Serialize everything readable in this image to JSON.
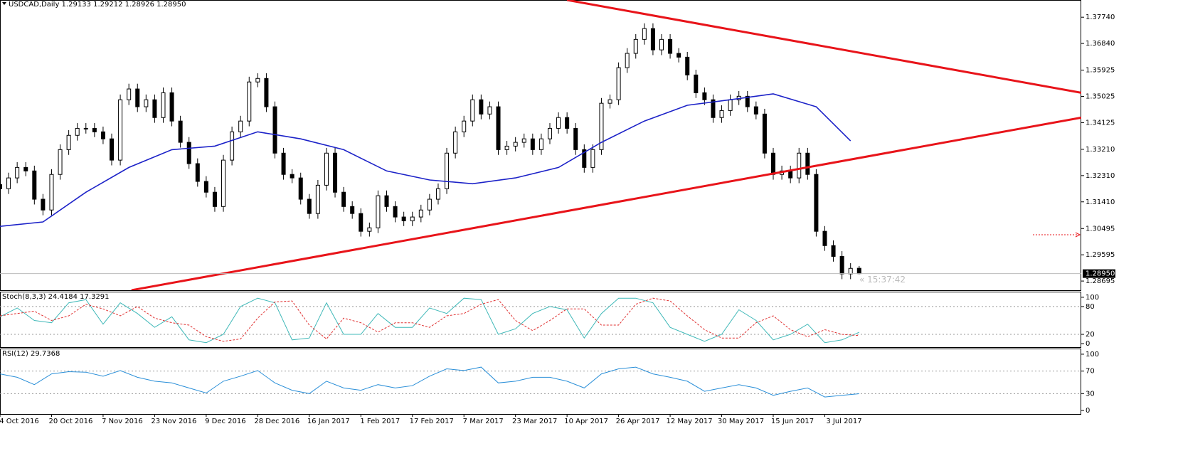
{
  "chart_data": [
    {
      "type": "candlestick",
      "title": "USDCAD,Daily  1.29133 1.29212 1.28926 1.28950",
      "x": [
        0,
        2,
        4,
        6,
        8,
        10,
        12,
        14,
        16,
        18,
        20,
        22,
        24,
        26,
        28,
        30,
        32,
        34,
        36,
        38,
        40,
        42,
        44,
        46,
        48,
        50,
        52,
        54,
        56,
        58,
        60,
        62,
        64,
        66,
        68,
        70,
        72,
        74,
        76,
        78,
        80,
        82,
        84,
        86,
        88,
        90,
        92,
        94,
        96,
        98,
        100,
        102,
        104,
        106,
        108,
        110,
        112,
        114,
        116,
        118,
        120,
        122,
        124,
        126,
        128,
        130,
        132,
        134,
        136,
        138,
        140,
        142,
        144,
        146,
        148,
        150,
        152,
        154,
        156,
        158,
        160,
        162,
        164,
        166,
        168,
        170,
        172,
        174,
        176,
        178,
        180,
        182,
        184,
        186,
        188,
        190,
        192,
        194,
        196,
        198,
        200
      ],
      "open": [
        1.32,
        1.3186,
        1.3223,
        1.3259,
        1.3247,
        1.315,
        1.3113,
        1.3235,
        1.332,
        1.3369,
        1.3393,
        1.3393,
        1.3381,
        1.3357,
        1.3284,
        1.3491,
        1.3528,
        1.3467,
        1.3491,
        1.343,
        1.3515,
        1.3418,
        1.3345,
        1.3272,
        1.3211,
        1.3174,
        1.3125,
        1.3284,
        1.3381,
        1.3418,
        1.3552,
        1.3564,
        1.3467,
        1.3308,
        1.3235,
        1.3223,
        1.315,
        1.3101,
        1.3198,
        1.3308,
        1.3174,
        1.3125,
        1.3101,
        1.304,
        1.3052,
        1.3162,
        1.3125,
        1.3089,
        1.3076,
        1.3089,
        1.3113,
        1.315,
        1.3186,
        1.3308,
        1.3381,
        1.3418,
        1.3491,
        1.3442,
        1.3467,
        1.332,
        1.3332,
        1.3345,
        1.3357,
        1.332,
        1.3357,
        1.3393,
        1.343,
        1.3393,
        1.332,
        1.3259,
        1.332,
        1.3479,
        1.3491,
        1.3601,
        1.365,
        1.3698,
        1.3735,
        1.3662,
        1.3698,
        1.365,
        1.3637,
        1.3576,
        1.3515,
        1.3491,
        1.343,
        1.3454,
        1.3491,
        1.3503,
        1.3467,
        1.3442,
        1.3308,
        1.3235,
        1.3247,
        1.3223,
        1.3308,
        1.3235,
        1.304,
        1.2991,
        1.2954,
        1.2894,
        1.29133
      ],
      "high": [
        1.3218,
        1.3241,
        1.3277,
        1.3277,
        1.3265,
        1.3168,
        1.3253,
        1.3338,
        1.3387,
        1.3411,
        1.3411,
        1.3411,
        1.3399,
        1.3375,
        1.3509,
        1.3546,
        1.3546,
        1.3509,
        1.3509,
        1.3533,
        1.3533,
        1.3436,
        1.3363,
        1.329,
        1.3229,
        1.3192,
        1.3302,
        1.3399,
        1.3436,
        1.357,
        1.3582,
        1.3582,
        1.3485,
        1.3326,
        1.3253,
        1.3241,
        1.3168,
        1.3216,
        1.3326,
        1.3326,
        1.3192,
        1.3143,
        1.3119,
        1.307,
        1.318,
        1.318,
        1.3143,
        1.3107,
        1.3107,
        1.3131,
        1.3168,
        1.3204,
        1.3326,
        1.3399,
        1.3436,
        1.3509,
        1.3509,
        1.3485,
        1.3485,
        1.335,
        1.3363,
        1.3375,
        1.3375,
        1.3375,
        1.3411,
        1.3448,
        1.3448,
        1.3411,
        1.3338,
        1.3338,
        1.3497,
        1.3509,
        1.3619,
        1.3668,
        1.3716,
        1.3753,
        1.3753,
        1.3716,
        1.3716,
        1.3668,
        1.3655,
        1.3594,
        1.3533,
        1.3509,
        1.3472,
        1.3509,
        1.3521,
        1.3521,
        1.3485,
        1.346,
        1.3326,
        1.3265,
        1.3265,
        1.3326,
        1.3326,
        1.3253,
        1.3058,
        1.3009,
        1.2972,
        1.2931,
        1.29212
      ],
      "low": [
        1.3168,
        1.3168,
        1.3205,
        1.3229,
        1.3132,
        1.3095,
        1.3095,
        1.3217,
        1.3302,
        1.3351,
        1.3375,
        1.3363,
        1.3339,
        1.3266,
        1.3266,
        1.3473,
        1.3449,
        1.3449,
        1.3412,
        1.3412,
        1.34,
        1.3327,
        1.3254,
        1.3193,
        1.3156,
        1.3107,
        1.3107,
        1.3266,
        1.3363,
        1.34,
        1.3534,
        1.3449,
        1.329,
        1.3217,
        1.3205,
        1.3132,
        1.3083,
        1.3083,
        1.318,
        1.3156,
        1.3107,
        1.3083,
        1.3022,
        1.3022,
        1.3034,
        1.3107,
        1.3071,
        1.3058,
        1.3058,
        1.3071,
        1.3095,
        1.3132,
        1.3168,
        1.329,
        1.3363,
        1.34,
        1.3424,
        1.3424,
        1.3302,
        1.3302,
        1.3314,
        1.3327,
        1.3302,
        1.3302,
        1.3339,
        1.3375,
        1.3375,
        1.3302,
        1.3241,
        1.3241,
        1.3302,
        1.3461,
        1.3473,
        1.3583,
        1.3632,
        1.368,
        1.3644,
        1.3644,
        1.3632,
        1.3619,
        1.3558,
        1.3497,
        1.3473,
        1.3412,
        1.3412,
        1.3436,
        1.3473,
        1.3449,
        1.3424,
        1.329,
        1.3217,
        1.3217,
        1.3205,
        1.3205,
        1.3217,
        1.3022,
        1.2973,
        1.2936,
        1.2876,
        1.2876,
        1.28926
      ],
      "close": [
        1.3186,
        1.3223,
        1.3259,
        1.3247,
        1.315,
        1.3113,
        1.3235,
        1.332,
        1.3369,
        1.3393,
        1.3393,
        1.3381,
        1.3357,
        1.3284,
        1.3491,
        1.3528,
        1.3467,
        1.3491,
        1.343,
        1.3515,
        1.3418,
        1.3345,
        1.3272,
        1.3211,
        1.3174,
        1.3125,
        1.3284,
        1.3381,
        1.3418,
        1.3552,
        1.3564,
        1.3467,
        1.3308,
        1.3235,
        1.3223,
        1.315,
        1.3101,
        1.3198,
        1.3308,
        1.3174,
        1.3125,
        1.3101,
        1.304,
        1.3052,
        1.3162,
        1.3125,
        1.3089,
        1.3076,
        1.3089,
        1.3113,
        1.315,
        1.3186,
        1.3308,
        1.3381,
        1.3418,
        1.3491,
        1.3442,
        1.3467,
        1.332,
        1.3332,
        1.3345,
        1.3357,
        1.332,
        1.3357,
        1.3393,
        1.343,
        1.3393,
        1.332,
        1.3259,
        1.332,
        1.3479,
        1.3491,
        1.3601,
        1.365,
        1.3698,
        1.3735,
        1.3662,
        1.3698,
        1.365,
        1.3637,
        1.3576,
        1.3515,
        1.3491,
        1.343,
        1.3454,
        1.3491,
        1.3503,
        1.3467,
        1.3442,
        1.3308,
        1.3235,
        1.3247,
        1.3223,
        1.3308,
        1.3235,
        1.304,
        1.2991,
        1.2954,
        1.2894,
        1.2913,
        1.2895
      ],
      "series": [
        {
          "color": "#1c22c8",
          "x": [
            0,
            10,
            20,
            30,
            40,
            50,
            60,
            70,
            80,
            90,
            100,
            110,
            120,
            130,
            140,
            150,
            160,
            170,
            180,
            190,
            198
          ],
          "values": [
            1.3057,
            1.3072,
            1.3174,
            1.3259,
            1.332,
            1.3332,
            1.3381,
            1.3357,
            1.332,
            1.3247,
            1.3216,
            1.3203,
            1.3223,
            1.3259,
            1.3345,
            1.3418,
            1.3472,
            1.3491,
            1.3511,
            1.3467,
            1.335
          ]
        },
        {
          "color": "#e8141a",
          "x": [
            132,
            251.7
          ],
          "values": [
            1.3833,
            1.3515
          ]
        },
        {
          "color": "#e8141a",
          "x": [
            30.6,
            251.7
          ],
          "values": [
            1.2838,
            1.343
          ]
        }
      ],
      "xlim": [
        0,
        251.7
      ],
      "ylim": [
        1.2838,
        1.3833
      ],
      "yticks": [
        {
          "value": 1.3774,
          "label": "1.37740"
        },
        {
          "value": 1.3684,
          "label": "1.36840"
        },
        1.35925,
        1.35025,
        1.34125,
        {
          "value": 1.3321,
          "label": "1.33210"
        },
        {
          "value": 1.3231,
          "label": "1.32310"
        },
        {
          "value": 1.3141,
          "label": "1.31410"
        },
        1.30495,
        1.29595,
        1.28695
      ],
      "current_price": {
        "value": 1.2895,
        "label": "1.28950"
      },
      "timer": "« 15:37:42"
    },
    {
      "type": "line",
      "title": "Stoch(8,3,3) 24.4184 17.3291",
      "x": [
        0,
        4,
        8,
        12,
        16,
        20,
        24,
        28,
        32,
        36,
        40,
        44,
        48,
        52,
        56,
        60,
        64,
        68,
        72,
        76,
        80,
        84,
        88,
        92,
        96,
        100,
        104,
        108,
        112,
        116,
        120,
        124,
        128,
        132,
        136,
        140,
        144,
        148,
        152,
        156,
        160,
        164,
        168,
        172,
        176,
        180,
        184,
        188,
        192,
        196,
        200
      ],
      "series": [
        {
          "color": "#3fb8b8",
          "values": [
            58,
            77,
            50,
            45,
            88,
            95,
            42,
            88,
            65,
            35,
            58,
            8,
            2,
            20,
            80,
            98,
            88,
            8,
            12,
            88,
            20,
            20,
            65,
            35,
            35,
            77,
            65,
            98,
            95,
            20,
            32,
            65,
            80,
            73,
            12,
            65,
            98,
            98,
            88,
            35,
            20,
            5,
            20,
            73,
            50,
            8,
            20,
            42,
            2,
            8,
            24.4184
          ]
        },
        {
          "color": "#e03030",
          "dash": true,
          "values": [
            60,
            65,
            70,
            50,
            60,
            85,
            75,
            60,
            80,
            55,
            45,
            40,
            15,
            5,
            10,
            55,
            90,
            92,
            40,
            10,
            55,
            45,
            25,
            45,
            45,
            35,
            60,
            65,
            85,
            95,
            50,
            28,
            50,
            75,
            75,
            40,
            40,
            85,
            98,
            92,
            60,
            30,
            12,
            12,
            45,
            60,
            30,
            15,
            30,
            20,
            17.3291
          ]
        }
      ],
      "ylim": [
        -7.6,
        110.6
      ],
      "yticks": [
        100,
        80,
        20,
        0
      ]
    },
    {
      "type": "line",
      "title": "RSI(12) 29.7368",
      "x": [
        0,
        4,
        8,
        12,
        16,
        20,
        24,
        28,
        32,
        36,
        40,
        44,
        48,
        52,
        56,
        60,
        64,
        68,
        72,
        76,
        80,
        84,
        88,
        92,
        96,
        100,
        104,
        108,
        112,
        116,
        120,
        124,
        128,
        132,
        136,
        140,
        144,
        148,
        152,
        156,
        160,
        164,
        168,
        172,
        176,
        180,
        184,
        188,
        192,
        196,
        200
      ],
      "series": [
        {
          "color": "#2a8fd8",
          "values": [
            65,
            59,
            46,
            65,
            69,
            68,
            61,
            71,
            59,
            52,
            49,
            40,
            31,
            52,
            61,
            71,
            49,
            36,
            30,
            52,
            40,
            36,
            46,
            40,
            44,
            61,
            74,
            71,
            77,
            49,
            52,
            59,
            59,
            52,
            40,
            65,
            74,
            77,
            65,
            59,
            52,
            34,
            40,
            46,
            40,
            27,
            34,
            40,
            24,
            27,
            29.7368
          ]
        }
      ],
      "ylim": [
        -6.25,
        108.75
      ],
      "yticks": [
        100,
        70,
        30,
        0
      ],
      "xticks": [
        {
          "value": 0,
          "label": "4 Oct 2016"
        },
        {
          "value": 12,
          "label": "20 Oct 2016"
        },
        {
          "value": 24,
          "label": "7 Nov 2016"
        },
        {
          "value": 36,
          "label": "23 Nov 2016"
        },
        {
          "value": 48,
          "label": "9 Dec 2016"
        },
        {
          "value": 60,
          "label": "28 Dec 2016"
        },
        {
          "value": 72,
          "label": "16 Jan 2017"
        },
        {
          "value": 84,
          "label": "1 Feb 2017"
        },
        {
          "value": 96,
          "label": "17 Feb 2017"
        },
        {
          "value": 108,
          "label": "7 Mar 2017"
        },
        {
          "value": 120,
          "label": "23 Mar 2017"
        },
        {
          "value": 132,
          "label": "10 Apr 2017"
        },
        {
          "value": 144,
          "label": "26 Apr 2017"
        },
        {
          "value": 156,
          "label": "12 May 2017"
        },
        {
          "value": 168,
          "label": "30 May 2017"
        },
        {
          "value": 180,
          "label": "15 Jun 2017"
        },
        {
          "value": 192,
          "label": "3 Jul 2017"
        }
      ]
    }
  ]
}
